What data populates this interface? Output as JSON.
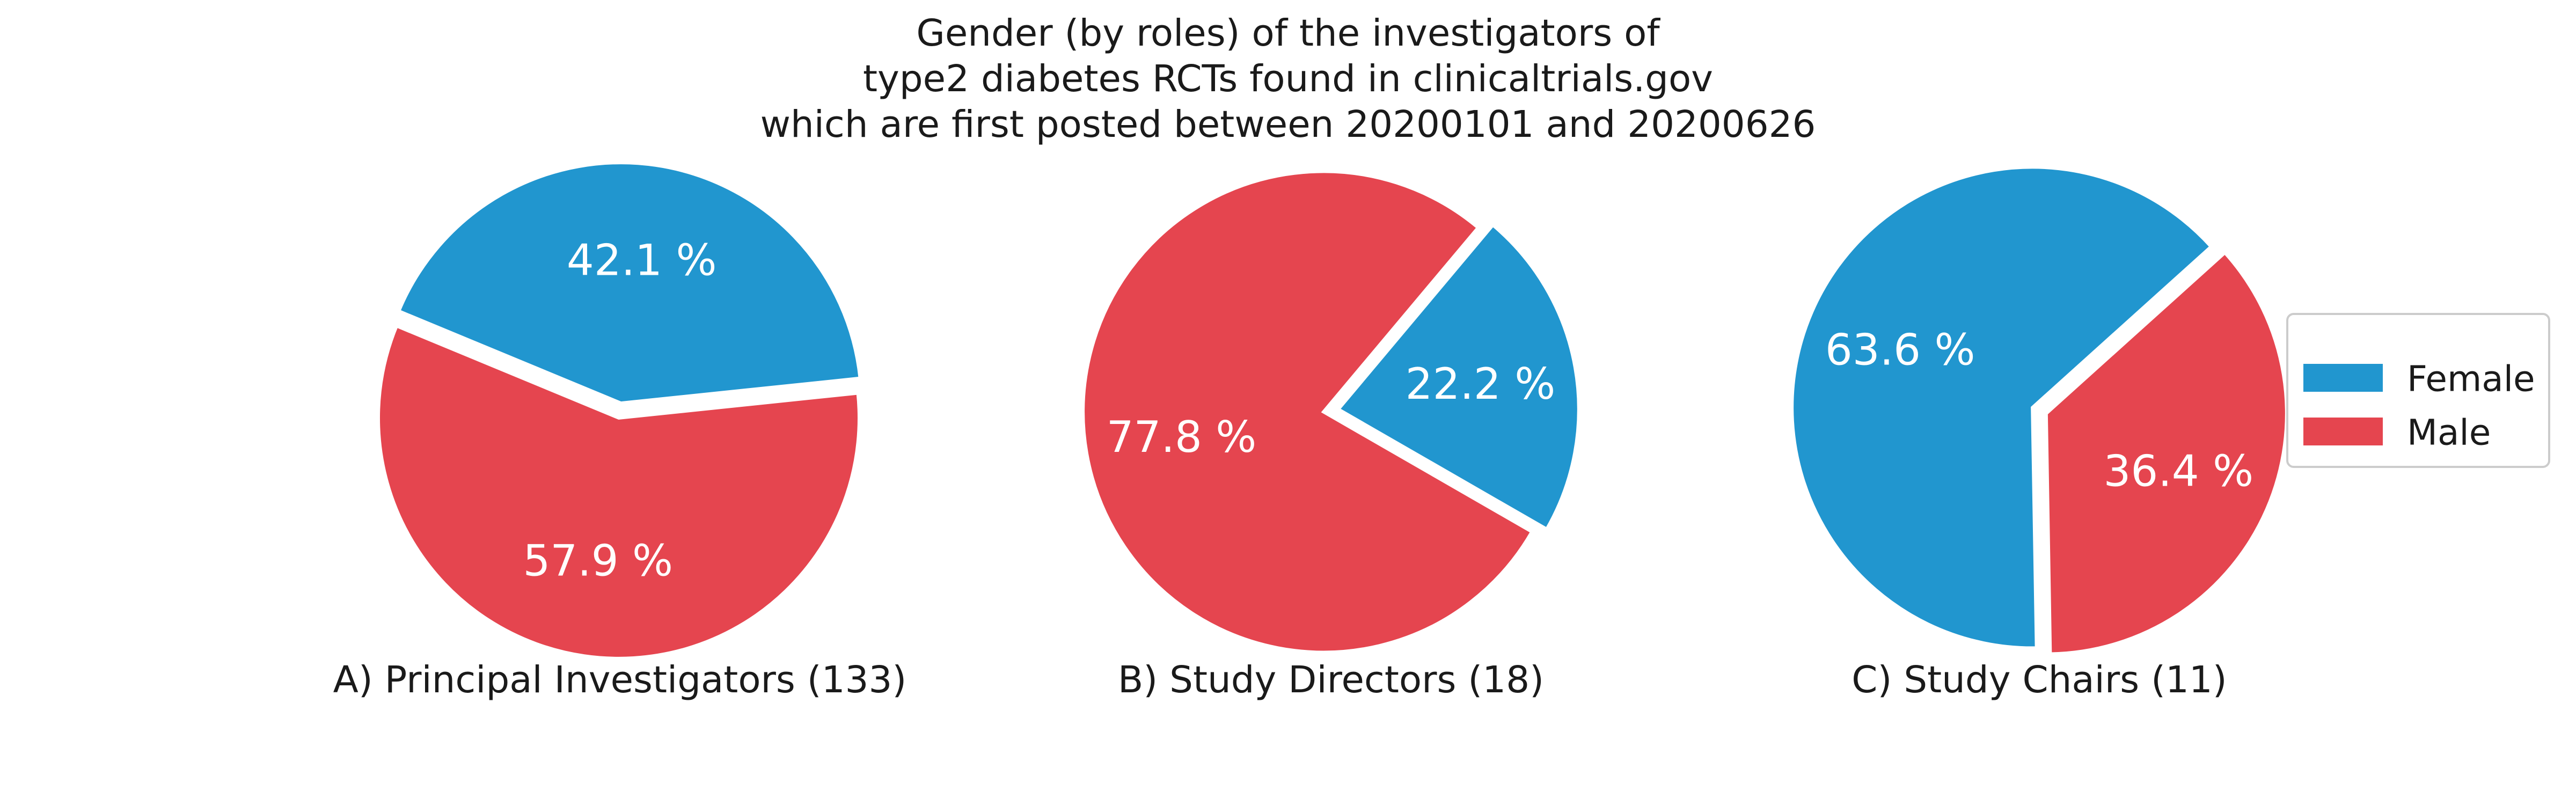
{
  "chart_data": {
    "type": "pie",
    "title_lines": [
      "Gender (by roles) of the investigators of",
      "type2 diabetes RCTs found in clinicaltrials.gov",
      "which are first posted between 20200101 and 20200626"
    ],
    "legend": {
      "placement": "right",
      "entries": [
        {
          "label": "Female",
          "color": "#2196cf"
        },
        {
          "label": "Male",
          "color": "#e5454f"
        }
      ]
    },
    "pies": [
      {
        "caption": "A) Principal Investigators (133)",
        "slices": [
          {
            "name": "Female",
            "percent": 42.1,
            "label": "42.1 %",
            "color": "#2196cf"
          },
          {
            "name": "Male",
            "percent": 57.9,
            "label": "57.9 %",
            "color": "#e5454f"
          }
        ]
      },
      {
        "caption": "B) Study Directors (18)",
        "slices": [
          {
            "name": "Female",
            "percent": 22.2,
            "label": "22.2 %",
            "color": "#2196cf"
          },
          {
            "name": "Male",
            "percent": 77.8,
            "label": "77.8 %",
            "color": "#e5454f"
          }
        ]
      },
      {
        "caption": "C) Study Chairs (11)",
        "slices": [
          {
            "name": "Male",
            "percent": 36.4,
            "label": "36.4 %",
            "color": "#e5454f"
          },
          {
            "name": "Female",
            "percent": 63.6,
            "label": "63.6 %",
            "color": "#2196cf"
          }
        ]
      }
    ]
  }
}
